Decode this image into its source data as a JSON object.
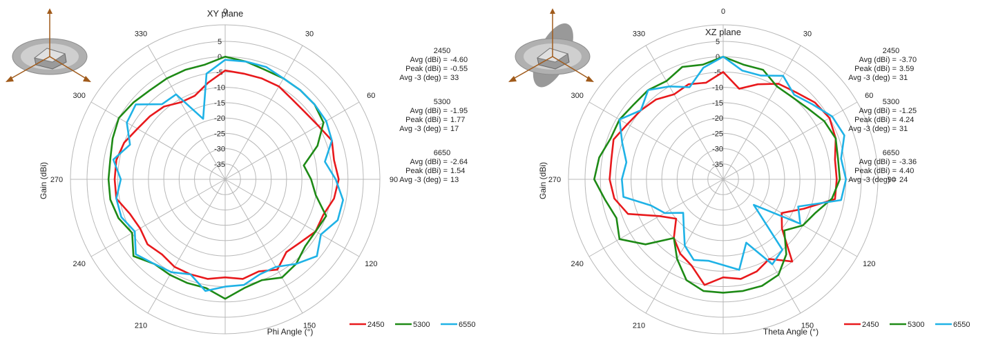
{
  "colors": {
    "2450": "#e8191c",
    "5300": "#1e8a16",
    "6550": "#1fb2e6",
    "grid": "#b8b8b8",
    "text": "#222222"
  },
  "chart_data": [
    {
      "type": "polar-line",
      "title": "XY plane",
      "xlabel": "Phi  Angle (°)",
      "ylabel": "Gain  (dBi)",
      "rlim": [
        -40,
        5
      ],
      "r_ticks": [
        "5",
        "0",
        "-5",
        "-10",
        "-15",
        "-20",
        "-25",
        "-30",
        "-35"
      ],
      "angle_ticks": [
        "0",
        "30",
        "60",
        "90",
        "120",
        "150",
        "180",
        "210",
        "240",
        "270",
        "300",
        "330"
      ],
      "legend": {
        "position": "bottom-right",
        "labels": [
          "2450",
          "5300",
          "6550"
        ]
      },
      "stats": [
        {
          "name": "2450",
          "lines": [
            [
              "Avg (dBi) =",
              "-4.60"
            ],
            [
              "Peak (dBi) =",
              "-0.55"
            ],
            [
              "Avg -3 (deg) =",
              "33"
            ]
          ]
        },
        {
          "name": "5300",
          "lines": [
            [
              "Avg (dBi) =",
              "-1.95"
            ],
            [
              "Peak (dBi) =",
              "1.77"
            ],
            [
              "Avg -3 (deg) =",
              "17"
            ]
          ]
        },
        {
          "name": "6650",
          "lines": [
            [
              "Avg (dBi) =",
              "-2.64"
            ],
            [
              "Peak (dBi) =",
              "1.54"
            ],
            [
              "Avg -3 (deg) =",
              "13"
            ]
          ]
        }
      ],
      "angles_deg": [
        0,
        10,
        20,
        30,
        40,
        50,
        60,
        70,
        80,
        90,
        100,
        110,
        120,
        130,
        140,
        150,
        160,
        170,
        180,
        190,
        200,
        210,
        220,
        230,
        240,
        250,
        260,
        270,
        280,
        290,
        300,
        310,
        320,
        330,
        340,
        350
      ],
      "series": [
        {
          "name": "2450",
          "values": [
            -4.5,
            -5,
            -5,
            -5,
            -6,
            -6,
            -5,
            -3,
            -4,
            -3,
            -4,
            -6,
            -6,
            -8,
            -9,
            -6,
            -8,
            -7,
            -8,
            -7,
            -7,
            -7,
            -8,
            -7,
            -8,
            -7,
            -4,
            -4,
            -4,
            -5,
            -7,
            -8,
            -9,
            -11,
            -11,
            -8
          ]
        },
        {
          "name": "5300",
          "values": [
            0,
            -1,
            -2,
            -2,
            -2,
            -2,
            -3,
            -8,
            -14,
            -12,
            -10,
            -5,
            -6,
            -6,
            -4,
            -3,
            -5,
            -4,
            -1,
            -4,
            -4,
            -4,
            -4,
            -1,
            -5,
            -3,
            -2,
            -2,
            -2,
            -1,
            0,
            -1,
            -2,
            -2,
            -2,
            -2
          ]
        },
        {
          "name": "6550",
          "values": [
            -1,
            -1,
            -1,
            -2,
            -2,
            -2,
            -2,
            -3,
            -7,
            -4,
            -1,
            -1,
            -4,
            -1,
            -4,
            -7,
            -7,
            -5,
            -5,
            -3,
            -7,
            -5,
            -4,
            -2,
            -6,
            -4,
            -4,
            -6,
            -3,
            -7,
            -3,
            -2,
            -8,
            -8,
            -19,
            -5
          ]
        }
      ]
    },
    {
      "type": "polar-line",
      "title": "XZ plane",
      "xlabel": "Theta  Angle (°)",
      "ylabel": "Gain  (dBi)",
      "rlim": [
        -40,
        5
      ],
      "r_ticks": [
        "5",
        "0",
        "-5",
        "-10",
        "-15",
        "-20",
        "-25",
        "-30",
        "-35"
      ],
      "angle_ticks": [
        "0",
        "30",
        "60",
        "90",
        "120",
        "150",
        "180",
        "210",
        "240",
        "270",
        "300",
        "330"
      ],
      "legend": {
        "position": "bottom-right",
        "labels": [
          "2450",
          "5300",
          "6550"
        ]
      },
      "stats": [
        {
          "name": "2450",
          "lines": [
            [
              "Avg (dBi) =",
              "-3.70"
            ],
            [
              "Peak (dBi) =",
              "3.59"
            ],
            [
              "Avg -3 (deg) =",
              "31"
            ]
          ]
        },
        {
          "name": "5300",
          "lines": [
            [
              "Avg (dBi) =",
              "-1.25"
            ],
            [
              "Peak (dBi) =",
              "4.24"
            ],
            [
              "Avg -3 (deg) =",
              "31"
            ]
          ]
        },
        {
          "name": "6650",
          "lines": [
            [
              "Avg (dBi) =",
              "-3.36"
            ],
            [
              "Peak (dBi) =",
              "4.40"
            ],
            [
              "Avg -3 (deg) =",
              "24"
            ]
          ]
        }
      ],
      "angles_deg": [
        0,
        10,
        20,
        30,
        40,
        50,
        60,
        70,
        80,
        90,
        100,
        110,
        120,
        130,
        140,
        150,
        160,
        170,
        180,
        190,
        200,
        210,
        220,
        230,
        240,
        250,
        260,
        270,
        280,
        290,
        300,
        310,
        320,
        330,
        340,
        350
      ],
      "series": [
        {
          "name": "2450",
          "values": [
            -5,
            -10,
            -7,
            -4,
            -3,
            -1,
            0,
            -1,
            -3,
            -3,
            -3,
            -12,
            -18,
            -15,
            -5,
            -10,
            -8,
            -7,
            -8,
            -5,
            -10,
            -12,
            -15,
            -20,
            -16,
            -7,
            -4,
            -3,
            -3,
            -2,
            -4,
            -5,
            -6,
            -8,
            -7,
            -8
          ]
        },
        {
          "name": "5300",
          "values": [
            0,
            -2,
            -2,
            -5,
            -5,
            -4,
            -2,
            -1,
            -2,
            -2,
            -4,
            -8,
            -10,
            -14,
            -8,
            -4,
            -3,
            -3,
            -3,
            -3,
            -5,
            -10,
            -15,
            -7,
            -1,
            -3,
            -1,
            2,
            1,
            -1,
            -1,
            -2,
            -2,
            -3,
            -1,
            -2
          ]
        },
        {
          "name": "6550",
          "values": [
            0,
            -4,
            -4,
            -1,
            -4,
            -2,
            1,
            2,
            -1,
            0,
            -1,
            -14,
            -11,
            -27,
            -10,
            -8,
            -18,
            -10,
            -12,
            -13,
            -12,
            -15,
            -20,
            -23,
            -18,
            -15,
            -7,
            -7,
            -8,
            -5,
            -1,
            -5,
            -2,
            -5,
            -8,
            -3
          ]
        }
      ]
    }
  ]
}
